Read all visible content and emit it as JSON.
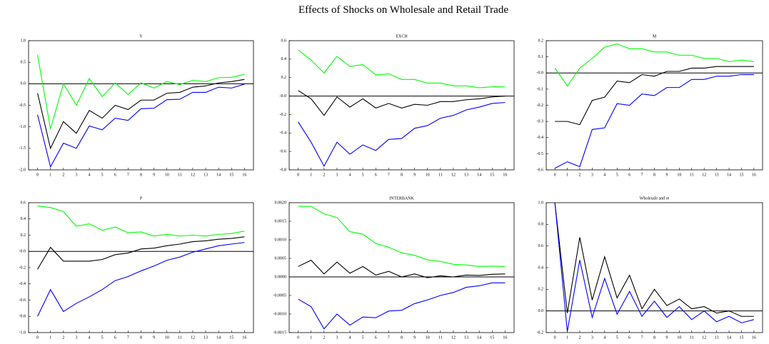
{
  "title": "Effects of Shocks on Wholesale and Retail Trade",
  "chart_data": [
    {
      "type": "line",
      "title": "Y",
      "x": [
        0,
        1,
        2,
        3,
        4,
        5,
        6,
        7,
        8,
        9,
        10,
        11,
        12,
        13,
        14,
        15,
        16
      ],
      "ylim": [
        -2.0,
        1.0
      ],
      "yticks": [
        {
          "value": -2,
          "label": "-2.0"
        },
        {
          "value": -1.5,
          "label": "-1.5"
        },
        {
          "value": -1,
          "label": "-1.0"
        },
        {
          "value": -0.5,
          "label": "-0.5"
        },
        {
          "value": 0,
          "label": "0.0"
        },
        {
          "value": 0.5,
          "label": "0.5"
        },
        {
          "value": 1,
          "label": "1.0"
        }
      ],
      "series": [
        {
          "color": "#00ff00",
          "values": [
            0.67,
            -1.05,
            0.0,
            -0.5,
            0.12,
            -0.3,
            0.02,
            -0.25,
            0.02,
            -0.1,
            0.05,
            -0.02,
            0.08,
            0.05,
            0.14,
            0.15,
            0.22
          ]
        },
        {
          "color": "#000000",
          "values": [
            -0.22,
            -1.5,
            -0.88,
            -1.15,
            -0.62,
            -0.8,
            -0.5,
            -0.6,
            -0.38,
            -0.38,
            -0.22,
            -0.2,
            -0.08,
            -0.05,
            0.02,
            0.05,
            0.1
          ]
        },
        {
          "color": "#0000ff",
          "values": [
            -0.72,
            -1.93,
            -1.38,
            -1.5,
            -0.98,
            -1.07,
            -0.8,
            -0.85,
            -0.58,
            -0.57,
            -0.37,
            -0.36,
            -0.2,
            -0.2,
            -0.08,
            -0.1,
            -0.01
          ]
        }
      ]
    },
    {
      "type": "line",
      "title": "EXCH",
      "x": [
        0,
        1,
        2,
        3,
        4,
        5,
        6,
        7,
        8,
        9,
        10,
        11,
        12,
        13,
        14,
        15,
        16
      ],
      "ylim": [
        -0.8,
        0.6
      ],
      "yticks": [
        {
          "value": -0.8,
          "label": "-0.8"
        },
        {
          "value": -0.6,
          "label": "-0.6"
        },
        {
          "value": -0.4,
          "label": "-0.4"
        },
        {
          "value": -0.2,
          "label": "-0.2"
        },
        {
          "value": 0,
          "label": "-0.0"
        },
        {
          "value": 0.2,
          "label": "0.2"
        },
        {
          "value": 0.4,
          "label": "0.4"
        },
        {
          "value": 0.6,
          "label": "0.6"
        }
      ],
      "series": [
        {
          "color": "#00ff00",
          "values": [
            0.5,
            0.39,
            0.25,
            0.43,
            0.32,
            0.34,
            0.23,
            0.24,
            0.18,
            0.18,
            0.14,
            0.14,
            0.11,
            0.11,
            0.09,
            0.1,
            0.1
          ]
        },
        {
          "color": "#000000",
          "values": [
            0.06,
            -0.03,
            -0.21,
            -0.01,
            -0.12,
            -0.03,
            -0.13,
            -0.08,
            -0.13,
            -0.09,
            -0.1,
            -0.06,
            -0.06,
            -0.04,
            -0.03,
            -0.01,
            0.0
          ]
        },
        {
          "color": "#0000ff",
          "values": [
            -0.28,
            -0.5,
            -0.76,
            -0.5,
            -0.63,
            -0.53,
            -0.59,
            -0.47,
            -0.46,
            -0.35,
            -0.32,
            -0.24,
            -0.21,
            -0.15,
            -0.12,
            -0.08,
            -0.07
          ]
        }
      ]
    },
    {
      "type": "line",
      "title": "M",
      "x": [
        0,
        1,
        2,
        3,
        4,
        5,
        6,
        7,
        8,
        9,
        10,
        11,
        12,
        13,
        14,
        15,
        16
      ],
      "ylim": [
        -0.6,
        0.2
      ],
      "yticks": [
        {
          "value": -0.6,
          "label": "-0.6"
        },
        {
          "value": -0.5,
          "label": "-0.5"
        },
        {
          "value": -0.4,
          "label": "-0.4"
        },
        {
          "value": -0.3,
          "label": "-0.3"
        },
        {
          "value": -0.2,
          "label": "-0.2"
        },
        {
          "value": -0.1,
          "label": "-0.1"
        },
        {
          "value": 0,
          "label": "-0.0"
        },
        {
          "value": 0.1,
          "label": "0.1"
        },
        {
          "value": 0.2,
          "label": "0.2"
        }
      ],
      "series": [
        {
          "color": "#00ff00",
          "values": [
            0.03,
            -0.08,
            0.03,
            0.09,
            0.16,
            0.18,
            0.15,
            0.15,
            0.13,
            0.13,
            0.11,
            0.11,
            0.09,
            0.09,
            0.07,
            0.08,
            0.07
          ]
        },
        {
          "color": "#000000",
          "values": [
            -0.3,
            -0.3,
            -0.32,
            -0.17,
            -0.15,
            -0.05,
            -0.06,
            -0.01,
            -0.02,
            0.01,
            0.01,
            0.03,
            0.03,
            0.04,
            0.04,
            0.04,
            0.04
          ]
        },
        {
          "color": "#0000ff",
          "values": [
            -0.59,
            -0.55,
            -0.58,
            -0.35,
            -0.34,
            -0.19,
            -0.2,
            -0.13,
            -0.14,
            -0.09,
            -0.09,
            -0.04,
            -0.04,
            -0.02,
            -0.02,
            -0.01,
            -0.01
          ]
        }
      ]
    },
    {
      "type": "line",
      "title": "P",
      "x": [
        0,
        1,
        2,
        3,
        4,
        5,
        6,
        7,
        8,
        9,
        10,
        11,
        12,
        13,
        14,
        15,
        16
      ],
      "ylim": [
        -1.0,
        0.6
      ],
      "yticks": [
        {
          "value": -1,
          "label": "-1.0"
        },
        {
          "value": -0.8,
          "label": "-0.8"
        },
        {
          "value": -0.6,
          "label": "-0.6"
        },
        {
          "value": -0.4,
          "label": "-0.4"
        },
        {
          "value": -0.2,
          "label": "-0.2"
        },
        {
          "value": 0,
          "label": "-0.0"
        },
        {
          "value": 0.2,
          "label": "0.2"
        },
        {
          "value": 0.4,
          "label": "0.4"
        },
        {
          "value": 0.6,
          "label": "0.6"
        }
      ],
      "series": [
        {
          "color": "#00ff00",
          "values": [
            0.56,
            0.54,
            0.49,
            0.31,
            0.34,
            0.26,
            0.3,
            0.23,
            0.24,
            0.19,
            0.21,
            0.19,
            0.2,
            0.19,
            0.21,
            0.22,
            0.25
          ]
        },
        {
          "color": "#000000",
          "values": [
            -0.22,
            0.05,
            -0.12,
            -0.12,
            -0.12,
            -0.1,
            -0.04,
            -0.02,
            0.03,
            0.04,
            0.07,
            0.09,
            0.12,
            0.13,
            0.15,
            0.16,
            0.18
          ]
        },
        {
          "color": "#0000ff",
          "values": [
            -0.8,
            -0.47,
            -0.74,
            -0.64,
            -0.56,
            -0.47,
            -0.36,
            -0.31,
            -0.24,
            -0.18,
            -0.11,
            -0.07,
            -0.01,
            0.03,
            0.07,
            0.09,
            0.11
          ]
        }
      ]
    },
    {
      "type": "line",
      "title": "INTERBANK",
      "x": [
        0,
        1,
        2,
        3,
        4,
        5,
        6,
        7,
        8,
        9,
        10,
        11,
        12,
        13,
        14,
        15,
        16
      ],
      "ylim": [
        -0.0015,
        0.002
      ],
      "yticks": [
        {
          "value": -0.0015,
          "label": "-0.0015"
        },
        {
          "value": -0.001,
          "label": "-0.0010"
        },
        {
          "value": -0.0005,
          "label": "-0.0005"
        },
        {
          "value": 0,
          "label": "0.0000"
        },
        {
          "value": 0.0005,
          "label": "0.0005"
        },
        {
          "value": 0.001,
          "label": "0.0010"
        },
        {
          "value": 0.0015,
          "label": "0.0015"
        },
        {
          "value": 0.002,
          "label": "0.0020"
        }
      ],
      "series": [
        {
          "color": "#00ff00",
          "values": [
            0.0019,
            0.0019,
            0.0017,
            0.0016,
            0.00122,
            0.00115,
            0.0009,
            0.0008,
            0.00065,
            0.00058,
            0.00046,
            0.00042,
            0.00034,
            0.00032,
            0.00028,
            0.00029,
            0.00028
          ]
        },
        {
          "color": "#000000",
          "values": [
            0.00028,
            0.00045,
            8e-05,
            0.0004,
            0.0001,
            0.00028,
            5e-05,
            0.00015,
            0.0,
            8e-05,
            -2e-05,
            3e-05,
            0.0,
            5e-05,
            4e-05,
            7e-05,
            8e-05
          ]
        },
        {
          "color": "#0000ff",
          "values": [
            -0.0006,
            -0.0008,
            -0.0014,
            -0.001,
            -0.0013,
            -0.00108,
            -0.0011,
            -0.00092,
            -0.0009,
            -0.00072,
            -0.00062,
            -0.0005,
            -0.00042,
            -0.00028,
            -0.00024,
            -0.00016,
            -0.00016
          ]
        }
      ]
    },
    {
      "type": "line",
      "title": "Wholesale and re",
      "x": [
        0,
        1,
        2,
        3,
        4,
        5,
        6,
        7,
        8,
        9,
        10,
        11,
        12,
        13,
        14,
        15,
        16
      ],
      "ylim": [
        -0.2,
        1.0
      ],
      "yticks": [
        {
          "value": -0.2,
          "label": "-0.2"
        },
        {
          "value": 0,
          "label": "0.0"
        },
        {
          "value": 0.2,
          "label": "0.2"
        },
        {
          "value": 0.4,
          "label": "0.4"
        },
        {
          "value": 0.6,
          "label": "0.6"
        },
        {
          "value": 0.8,
          "label": "0.8"
        },
        {
          "value": 1,
          "label": "1.0"
        }
      ],
      "series": [
        {
          "color": "#000000",
          "values": [
            1.0,
            -0.02,
            0.68,
            0.1,
            0.5,
            0.12,
            0.33,
            0.02,
            0.2,
            0.05,
            0.11,
            0.02,
            0.04,
            -0.02,
            0.0,
            -0.05,
            -0.05
          ]
        },
        {
          "color": "#0000ff",
          "values": [
            1.0,
            -0.19,
            0.47,
            -0.06,
            0.3,
            -0.03,
            0.18,
            -0.05,
            0.09,
            -0.06,
            0.04,
            -0.08,
            0.0,
            -0.1,
            -0.05,
            -0.11,
            -0.08
          ]
        }
      ]
    }
  ]
}
